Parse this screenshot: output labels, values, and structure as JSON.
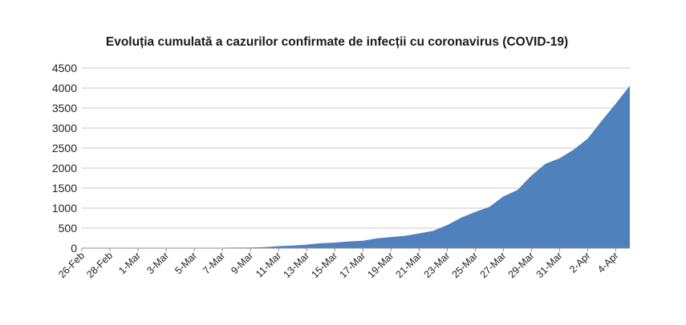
{
  "chart_data": {
    "type": "area",
    "title": "Evoluția cumulată a cazurilor confirmate de infecții cu coronavirus (COVID-19)",
    "xlabel": "",
    "ylabel": "",
    "ylim": [
      0,
      4500
    ],
    "yticks": [
      0,
      500,
      1000,
      1500,
      2000,
      2500,
      3000,
      3500,
      4000,
      4500
    ],
    "grid": true,
    "legend": "none",
    "x": [
      "26-Feb",
      "27-Feb",
      "28-Feb",
      "29-Feb",
      "1-Mar",
      "2-Mar",
      "3-Mar",
      "4-Mar",
      "5-Mar",
      "6-Mar",
      "7-Mar",
      "8-Mar",
      "9-Mar",
      "10-Mar",
      "11-Mar",
      "12-Mar",
      "13-Mar",
      "14-Mar",
      "15-Mar",
      "16-Mar",
      "17-Mar",
      "18-Mar",
      "19-Mar",
      "20-Mar",
      "21-Mar",
      "22-Mar",
      "23-Mar",
      "24-Mar",
      "25-Mar",
      "26-Mar",
      "27-Mar",
      "28-Mar",
      "29-Mar",
      "30-Mar",
      "31-Mar",
      "1-Apr",
      "2-Apr",
      "3-Apr",
      "4-Apr",
      "5-Apr"
    ],
    "xtick_labels": [
      "26-Feb",
      "28-Feb",
      "1-Mar",
      "3-Mar",
      "5-Mar",
      "7-Mar",
      "9-Mar",
      "11-Mar",
      "13-Mar",
      "15-Mar",
      "17-Mar",
      "19-Mar",
      "21-Mar",
      "23-Mar",
      "25-Mar",
      "27-Mar",
      "29-Mar",
      "31-Mar",
      "2-Apr",
      "4-Apr"
    ],
    "series": [
      {
        "color": "#4f81bd",
        "values": [
          1,
          3,
          3,
          3,
          3,
          3,
          4,
          4,
          6,
          9,
          9,
          15,
          15,
          25,
          49,
          64,
          89,
          123,
          139,
          168,
          184,
          246,
          277,
          308,
          367,
          433,
          576,
          762,
          906,
          1029,
          1292,
          1452,
          1815,
          2109,
          2245,
          2460,
          2738,
          3183,
          3613,
          4057
        ]
      }
    ]
  }
}
